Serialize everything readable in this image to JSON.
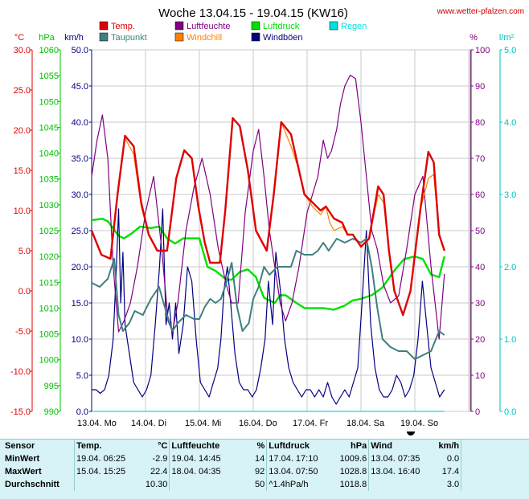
{
  "title": "Woche 13.04.15 - 19.04.15 (KW16)",
  "site": "www.wetter-pfalzen.com",
  "axes_headers": {
    "temp": "°C",
    "hpa": "hPa",
    "kmh": "km/h",
    "pct": "%",
    "lm2": "l/m²"
  },
  "legend": [
    {
      "label": "Temp.",
      "color": "#e00000"
    },
    {
      "label": "Taupunkt",
      "color": "#3f7f7f"
    },
    {
      "label": "Luftfeuchte",
      "color": "#800080"
    },
    {
      "label": "Windchill",
      "color": "#ff8000"
    },
    {
      "label": "Luftdruck",
      "color": "#00e000"
    },
    {
      "label": "Windböen",
      "color": "#000080"
    },
    {
      "label": "Regen",
      "color": "#00e0e0"
    }
  ],
  "chart_data": {
    "type": "line",
    "x_labels": [
      "13.04. Mo",
      "14.04. Di",
      "15.04. Mi",
      "16.04. Do",
      "17.04. Fr",
      "18.04. Sa",
      "19.04. So"
    ],
    "y_axes": {
      "temp": {
        "label": "°C",
        "range": [
          -15,
          30
        ],
        "ticks": [
          "30.0",
          "25.0",
          "20.0",
          "15.0",
          "10.0",
          "5.0",
          "0.0",
          "-5.0",
          "-10.0",
          "-15.0"
        ]
      },
      "hpa": {
        "label": "hPa",
        "range": [
          990,
          1060
        ],
        "ticks": [
          "1060",
          "1055",
          "1050",
          "1045",
          "1040",
          "1035",
          "1030",
          "1025",
          "1020",
          "1015",
          "1010",
          "1005",
          "1000",
          "995",
          "990"
        ]
      },
      "kmh": {
        "label": "km/h",
        "range": [
          0,
          50
        ],
        "ticks": [
          "50.0",
          "45.0",
          "40.0",
          "35.0",
          "30.0",
          "25.0",
          "20.0",
          "15.0",
          "10.0",
          "5.0",
          "0.0"
        ]
      },
      "pct": {
        "label": "%",
        "range": [
          0,
          100
        ],
        "ticks": [
          "100",
          "90",
          "80",
          "70",
          "60",
          "50",
          "40",
          "30",
          "20",
          "10",
          "0"
        ]
      },
      "lm2": {
        "label": "l/m²",
        "range": [
          0,
          5
        ],
        "ticks": [
          "5.0",
          "4.0",
          "3.0",
          "2.0",
          "1.0",
          "0.0"
        ]
      }
    },
    "grid": true,
    "series": [
      {
        "name": "Temp.",
        "axis": "temp",
        "color": "#e00000",
        "t": [
          0,
          0.06,
          0.18,
          0.35,
          0.48,
          0.62,
          0.78,
          0.92,
          1.06,
          1.22,
          1.4,
          1.57,
          1.72,
          1.86,
          1.98,
          2.1,
          2.2,
          2.38,
          2.48,
          2.62,
          2.75,
          2.9,
          3.05,
          3.25,
          3.38,
          3.52,
          3.7,
          3.85,
          3.95,
          4.1,
          4.25,
          4.35,
          4.5,
          4.65,
          4.75,
          4.85,
          5.0,
          5.15,
          5.32,
          5.42,
          5.52,
          5.62,
          5.78,
          5.92,
          6.1,
          6.25,
          6.35,
          6.45,
          6.55
        ],
        "v": [
          7.5,
          6.5,
          4.5,
          4.0,
          12.0,
          19.3,
          18.0,
          11.0,
          7.0,
          5.0,
          5.0,
          14.0,
          17.5,
          16.5,
          10.5,
          6.0,
          3.5,
          3.5,
          10.0,
          21.5,
          20.5,
          15.0,
          7.5,
          5.0,
          12.0,
          21.0,
          19.5,
          15.0,
          12.0,
          11.0,
          10.0,
          10.5,
          9.0,
          8.5,
          7.0,
          7.0,
          5.5,
          6.5,
          13.0,
          12.0,
          5.0,
          0.0,
          -3.0,
          0.0,
          10.0,
          17.3,
          16.0,
          7.0,
          5.0
        ]
      },
      {
        "name": "Windchill",
        "axis": "temp",
        "color": "#ff8000",
        "t": [
          0,
          0.06,
          0.18,
          0.35,
          0.48,
          0.62,
          0.78,
          0.92,
          1.06,
          1.22,
          1.4,
          1.57,
          1.72,
          1.86,
          1.98,
          2.1,
          2.2,
          2.38,
          2.48,
          2.62,
          2.75,
          2.9,
          3.05,
          3.25,
          3.38,
          3.52,
          3.7,
          3.85,
          3.95,
          4.1,
          4.25,
          4.35,
          4.42,
          4.5,
          4.65,
          4.75,
          4.85,
          5.0,
          5.15,
          5.32,
          5.42,
          5.52,
          5.62,
          5.78,
          5.92,
          6.1,
          6.25,
          6.35,
          6.45,
          6.55
        ],
        "v": [
          7.5,
          6.5,
          4.5,
          4.0,
          12.0,
          19.0,
          17.0,
          10.5,
          7.0,
          5.0,
          5.0,
          14.0,
          17.5,
          16.5,
          10.5,
          6.0,
          3.5,
          3.5,
          10.0,
          21.5,
          20.5,
          15.0,
          7.5,
          5.0,
          12.0,
          21.0,
          18.0,
          15.0,
          12.0,
          10.5,
          9.5,
          10.5,
          8.5,
          7.5,
          8.0,
          7.0,
          7.0,
          5.5,
          6.5,
          12.0,
          11.0,
          5.0,
          0.0,
          -3.0,
          0.0,
          10.0,
          14.0,
          14.5,
          7.0,
          5.0
        ]
      },
      {
        "name": "Taupunkt",
        "axis": "temp",
        "color": "#3f7f7f",
        "t": [
          0,
          0.15,
          0.3,
          0.42,
          0.5,
          0.58,
          0.7,
          0.8,
          0.95,
          1.1,
          1.25,
          1.4,
          1.5,
          1.6,
          1.75,
          1.9,
          2.0,
          2.1,
          2.2,
          2.3,
          2.4,
          2.5,
          2.6,
          2.7,
          2.8,
          2.92,
          3.0,
          3.1,
          3.2,
          3.3,
          3.45,
          3.6,
          3.7,
          3.8,
          3.95,
          4.1,
          4.2,
          4.3,
          4.4,
          4.55,
          4.7,
          4.85,
          5.0,
          5.1,
          5.2,
          5.3,
          5.4,
          5.55,
          5.7,
          5.85,
          6.0,
          6.15,
          6.3,
          6.45,
          6.55
        ],
        "v": [
          1.0,
          0.5,
          1.5,
          4.0,
          -3.0,
          -5.0,
          -4.0,
          -2.5,
          -3.0,
          -1.0,
          0.5,
          -3.0,
          -5.0,
          -4.0,
          -3.0,
          -3.5,
          -3.5,
          -2.0,
          -1.0,
          -1.5,
          -1.0,
          1.0,
          3.5,
          -2.0,
          -5.0,
          -4.0,
          -1.0,
          0.5,
          3.0,
          2.0,
          3.0,
          3.0,
          3.0,
          5.0,
          4.5,
          4.5,
          5.0,
          6.0,
          5.0,
          6.5,
          6.0,
          6.5,
          6.0,
          6.5,
          3.0,
          -2.0,
          -6.0,
          -7.0,
          -7.5,
          -7.5,
          -8.5,
          -8.0,
          -7.5,
          -5.0,
          -5.5
        ]
      },
      {
        "name": "Luftfeuchte",
        "axis": "pct",
        "color": "#800080",
        "t": [
          0,
          0.1,
          0.2,
          0.3,
          0.4,
          0.5,
          0.6,
          0.72,
          0.85,
          1.0,
          1.15,
          1.3,
          1.42,
          1.5,
          1.6,
          1.75,
          1.9,
          2.05,
          2.2,
          2.35,
          2.5,
          2.6,
          2.72,
          2.85,
          3.0,
          3.1,
          3.2,
          3.3,
          3.4,
          3.5,
          3.6,
          3.72,
          3.85,
          4.0,
          4.1,
          4.2,
          4.3,
          4.38,
          4.45,
          4.55,
          4.62,
          4.7,
          4.8,
          4.9,
          5.0,
          5.1,
          5.2,
          5.3,
          5.42,
          5.55,
          5.7,
          5.85,
          6.0,
          6.15,
          6.3,
          6.45,
          6.55
        ],
        "v": [
          65,
          75,
          82,
          70,
          40,
          22,
          25,
          30,
          40,
          55,
          65,
          45,
          25,
          22,
          30,
          50,
          62,
          70,
          60,
          45,
          35,
          30,
          30,
          55,
          72,
          78,
          65,
          50,
          40,
          30,
          25,
          30,
          40,
          55,
          60,
          65,
          75,
          70,
          72,
          78,
          85,
          90,
          93,
          92,
          80,
          65,
          50,
          45,
          35,
          30,
          32,
          45,
          60,
          65,
          40,
          20,
          38
        ]
      },
      {
        "name": "Luftdruck",
        "axis": "hpa",
        "color": "#00e000",
        "t": [
          0,
          0.2,
          0.3,
          0.5,
          0.6,
          0.75,
          0.9,
          1.1,
          1.25,
          1.4,
          1.55,
          1.7,
          1.85,
          2.0,
          2.15,
          2.3,
          2.5,
          2.6,
          2.75,
          2.9,
          3.05,
          3.2,
          3.4,
          3.5,
          3.6,
          3.8,
          3.95,
          4.1,
          4.3,
          4.5,
          4.7,
          4.85,
          5.0,
          5.2,
          5.4,
          5.6,
          5.8,
          6.0,
          6.15,
          6.3,
          6.45,
          6.55
        ],
        "v": [
          1027,
          1027.3,
          1026.8,
          1024,
          1023.5,
          1024.5,
          1025.8,
          1025.5,
          1025.8,
          1023.5,
          1022.5,
          1023.5,
          1023.5,
          1023.5,
          1018,
          1017.2,
          1015.5,
          1015.5,
          1017,
          1017.5,
          1016,
          1012,
          1011,
          1012.5,
          1012.5,
          1011,
          1010,
          1010,
          1010,
          1009.7,
          1010.5,
          1011.5,
          1011.8,
          1012.5,
          1014,
          1017,
          1019.5,
          1020,
          1019.5,
          1016.5,
          1016,
          1020
        ]
      },
      {
        "name": "Windböen",
        "axis": "kmh",
        "color": "#000080",
        "t": [
          0,
          0.08,
          0.16,
          0.24,
          0.32,
          0.4,
          0.46,
          0.5,
          0.54,
          0.58,
          0.62,
          0.7,
          0.78,
          0.86,
          0.94,
          1.02,
          1.1,
          1.18,
          1.26,
          1.32,
          1.38,
          1.44,
          1.5,
          1.56,
          1.62,
          1.7,
          1.78,
          1.86,
          1.94,
          2.02,
          2.1,
          2.18,
          2.26,
          2.34,
          2.4,
          2.46,
          2.52,
          2.58,
          2.66,
          2.74,
          2.82,
          2.9,
          2.98,
          3.06,
          3.14,
          3.22,
          3.28,
          3.36,
          3.42,
          3.5,
          3.58,
          3.66,
          3.74,
          3.82,
          3.9,
          3.98,
          4.06,
          4.14,
          4.22,
          4.3,
          4.38,
          4.46,
          4.54,
          4.62,
          4.7,
          4.78,
          4.86,
          4.94,
          5.02,
          5.1,
          5.18,
          5.26,
          5.34,
          5.42,
          5.5,
          5.58,
          5.66,
          5.74,
          5.82,
          5.9,
          5.98,
          6.06,
          6.14,
          6.22,
          6.3,
          6.38,
          6.46,
          6.55
        ],
        "v": [
          3,
          3,
          2.5,
          3,
          5,
          10,
          20,
          28,
          15,
          22,
          12,
          8,
          4,
          3,
          2,
          3,
          5,
          12,
          20,
          28,
          12,
          15,
          10,
          15,
          8,
          12,
          20,
          18,
          10,
          4,
          3,
          2,
          4,
          6,
          10,
          17,
          20,
          15,
          8,
          4,
          3,
          3,
          2,
          3,
          6,
          10,
          18,
          12,
          22,
          17,
          10,
          6,
          4,
          3,
          2,
          3,
          3,
          2,
          3,
          2,
          4,
          2,
          1,
          2,
          3,
          2,
          4,
          6,
          15,
          25,
          12,
          6,
          3,
          2,
          2,
          3,
          5,
          4,
          2,
          3,
          5,
          10,
          18,
          12,
          6,
          4,
          2,
          3
        ]
      },
      {
        "name": "Regen",
        "axis": "lm2",
        "color": "#00e0e0",
        "t": [
          0,
          6.55
        ],
        "v": [
          0.0,
          0.0
        ]
      }
    ]
  },
  "stats": {
    "header": {
      "sensor": "Sensor",
      "temp": "Temp.",
      "temp_unit": "°C",
      "hum": "Luftfeuchte",
      "hum_unit": "%",
      "press": "Luftdruck",
      "press_unit": "hPa",
      "wind": "Wind",
      "wind_unit": "km/h"
    },
    "rows": [
      {
        "label": "MinWert",
        "temp_time": "19.04.  06:25",
        "temp_val": "-2.9",
        "hum_time": "19.04.  14:45",
        "hum_val": "14",
        "press_time": "17.04.  17:10",
        "press_val": "1009.6",
        "wind_time": "13.04.  07:35",
        "wind_val": "0.0"
      },
      {
        "label": "MaxWert",
        "temp_time": "15.04.  15:25",
        "temp_val": "22.4",
        "hum_time": "18.04.  04:35",
        "hum_val": "92",
        "press_time": "13.04.  07:50",
        "press_val": "1028.8",
        "wind_time": "13.04.  16:40",
        "wind_val": "17.4"
      },
      {
        "label": "Durchschnitt",
        "temp_time": "",
        "temp_val": "10.30",
        "hum_time": "",
        "hum_val": "50",
        "press_time": "^1.4hPa/h",
        "press_val": "1018.8",
        "wind_time": "",
        "wind_val": "3.0"
      }
    ]
  }
}
